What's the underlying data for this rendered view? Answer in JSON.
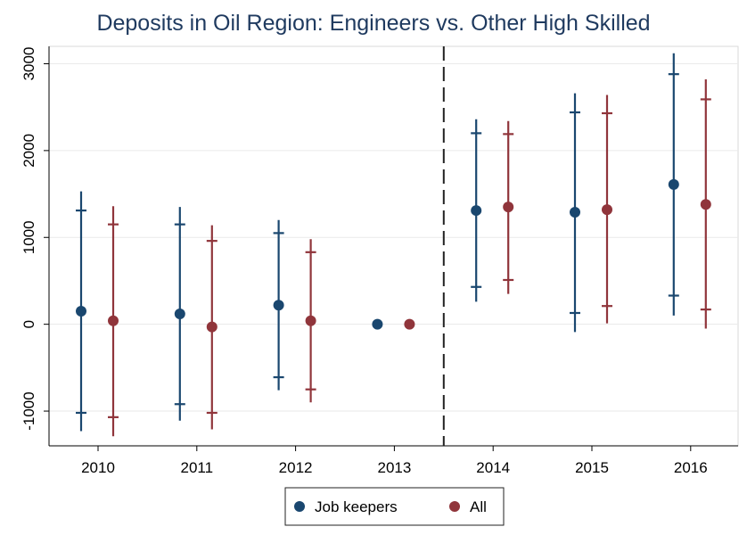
{
  "chart_data": {
    "type": "scatter",
    "title": "Deposits in Oil Region: Engineers vs. Other High Skilled",
    "xlabel": "",
    "ylabel": "",
    "categories": [
      "2010",
      "2011",
      "2012",
      "2013",
      "2014",
      "2015",
      "2016"
    ],
    "y_ticks": [
      -1000,
      0,
      1000,
      2000,
      3000
    ],
    "y_tick_labels": [
      "-1000",
      "0",
      "1000",
      "2000",
      "3000"
    ],
    "ylim": [
      -1400,
      3200
    ],
    "grid": true,
    "event_line_between": [
      "2013",
      "2014"
    ],
    "legend": {
      "placement": "bottom"
    },
    "series": [
      {
        "name": "Job keepers",
        "color": "#1a476f",
        "points": [
          {
            "x": "2010",
            "y": 150,
            "ci90": [
              -1020,
              1310
            ],
            "ci95": [
              -1230,
              1530
            ]
          },
          {
            "x": "2011",
            "y": 120,
            "ci90": [
              -920,
              1150
            ],
            "ci95": [
              -1110,
              1350
            ]
          },
          {
            "x": "2012",
            "y": 220,
            "ci90": [
              -610,
              1050
            ],
            "ci95": [
              -760,
              1200
            ]
          },
          {
            "x": "2013",
            "y": 0,
            "ci90": [
              0,
              0
            ],
            "ci95": [
              0,
              0
            ]
          },
          {
            "x": "2014",
            "y": 1310,
            "ci90": [
              430,
              2200
            ],
            "ci95": [
              260,
              2360
            ]
          },
          {
            "x": "2015",
            "y": 1290,
            "ci90": [
              130,
              2440
            ],
            "ci95": [
              -90,
              2660
            ]
          },
          {
            "x": "2016",
            "y": 1610,
            "ci90": [
              330,
              2880
            ],
            "ci95": [
              100,
              3120
            ]
          }
        ]
      },
      {
        "name": "All",
        "color": "#90353b",
        "points": [
          {
            "x": "2010",
            "y": 40,
            "ci90": [
              -1070,
              1150
            ],
            "ci95": [
              -1290,
              1360
            ]
          },
          {
            "x": "2011",
            "y": -30,
            "ci90": [
              -1020,
              960
            ],
            "ci95": [
              -1210,
              1140
            ]
          },
          {
            "x": "2012",
            "y": 40,
            "ci90": [
              -750,
              830
            ],
            "ci95": [
              -900,
              980
            ]
          },
          {
            "x": "2013",
            "y": 0,
            "ci90": [
              0,
              0
            ],
            "ci95": [
              0,
              0
            ]
          },
          {
            "x": "2014",
            "y": 1350,
            "ci90": [
              510,
              2190
            ],
            "ci95": [
              350,
              2340
            ]
          },
          {
            "x": "2015",
            "y": 1320,
            "ci90": [
              210,
              2430
            ],
            "ci95": [
              10,
              2640
            ]
          },
          {
            "x": "2016",
            "y": 1380,
            "ci90": [
              170,
              2590
            ],
            "ci95": [
              -50,
              2820
            ]
          }
        ]
      }
    ]
  }
}
